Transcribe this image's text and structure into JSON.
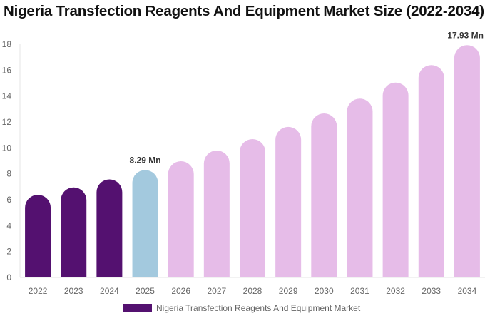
{
  "chart_data": {
    "type": "bar",
    "title": "Nigeria Transfection Reagents And Equipment Market Size (2022-2034)",
    "categories": [
      "2022",
      "2023",
      "2024",
      "2025",
      "2026",
      "2027",
      "2028",
      "2029",
      "2030",
      "2031",
      "2032",
      "2033",
      "2034"
    ],
    "series": [
      {
        "name": "Nigeria Transfection Reagents And Equipment Market",
        "values": [
          6.38,
          6.95,
          7.57,
          8.29,
          8.97,
          9.8,
          10.68,
          11.62,
          12.66,
          13.8,
          15.04,
          16.39,
          17.93
        ]
      }
    ],
    "data_labels": {
      "2025": "8.29 Mn",
      "2034": "17.93 Mn"
    },
    "ylim": [
      0,
      18
    ],
    "yticks": [
      0,
      2,
      4,
      6,
      8,
      10,
      12,
      14,
      16,
      18
    ],
    "xlabel": "",
    "ylabel": "",
    "grid": false,
    "legend_position": "bottom",
    "colors": {
      "historical": "#541170",
      "current": "#a3c9de",
      "forecast": "#e6bce8"
    }
  }
}
